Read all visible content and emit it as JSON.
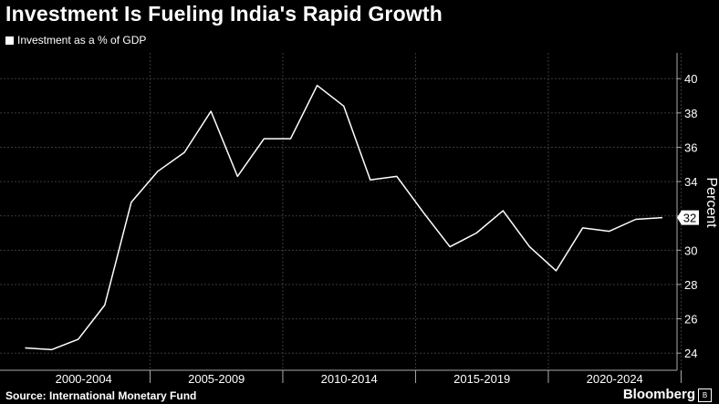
{
  "chart_data": {
    "type": "line",
    "title": "Investment Is Fueling India's Rapid Growth",
    "legend": [
      "Investment as a % of GDP"
    ],
    "legend_position": "top-left",
    "ylabel": "Percent",
    "y_axis_position": "right",
    "ylim": [
      23,
      41.5
    ],
    "yticks": [
      24,
      26,
      28,
      30,
      32,
      34,
      36,
      38,
      40
    ],
    "x_groups": [
      "2000-2004",
      "2005-2009",
      "2010-2014",
      "2015-2019",
      "2020-2024"
    ],
    "x": [
      2000,
      2001,
      2002,
      2003,
      2004,
      2005,
      2006,
      2007,
      2008,
      2009,
      2010,
      2011,
      2012,
      2013,
      2014,
      2015,
      2016,
      2017,
      2018,
      2019,
      2020,
      2021,
      2022,
      2023,
      2024
    ],
    "series": [
      {
        "name": "Investment as a % of GDP",
        "values": [
          24.3,
          24.2,
          24.8,
          26.8,
          32.8,
          34.6,
          35.7,
          38.1,
          34.3,
          36.5,
          36.5,
          39.6,
          38.4,
          34.1,
          34.3,
          32.2,
          30.2,
          31.0,
          32.3,
          30.2,
          28.8,
          31.3,
          31.1,
          31.8,
          31.9
        ]
      }
    ],
    "last_value_label": "32",
    "grid": true
  },
  "footer": {
    "source": "Source: International Monetary Fund",
    "brand": "Bloomberg",
    "brand_icon": "bloomberg-logo-icon"
  }
}
